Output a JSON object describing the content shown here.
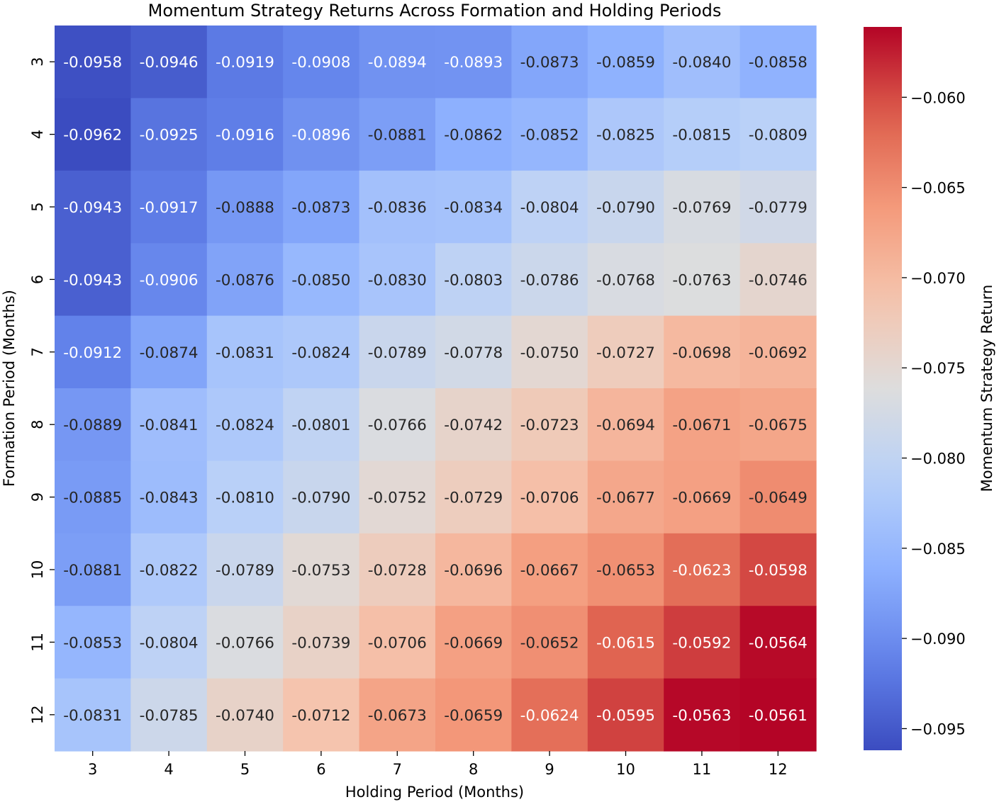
{
  "chart_data": {
    "type": "heatmap",
    "title": "Momentum Strategy Returns Across Formation and Holding Periods",
    "xlabel": "Holding Period (Months)",
    "ylabel": "Formation Period (Months)",
    "x_categories": [
      "3",
      "4",
      "5",
      "6",
      "7",
      "8",
      "9",
      "10",
      "11",
      "12"
    ],
    "y_categories": [
      "3",
      "4",
      "5",
      "6",
      "7",
      "8",
      "9",
      "10",
      "11",
      "12"
    ],
    "values": [
      [
        -0.0958,
        -0.0946,
        -0.0919,
        -0.0908,
        -0.0894,
        -0.0893,
        -0.0873,
        -0.0859,
        -0.084,
        -0.0858
      ],
      [
        -0.0962,
        -0.0925,
        -0.0916,
        -0.0896,
        -0.0881,
        -0.0862,
        -0.0852,
        -0.0825,
        -0.0815,
        -0.0809
      ],
      [
        -0.0943,
        -0.0917,
        -0.0888,
        -0.0873,
        -0.0836,
        -0.0834,
        -0.0804,
        -0.079,
        -0.0769,
        -0.0779
      ],
      [
        -0.0943,
        -0.0906,
        -0.0876,
        -0.085,
        -0.083,
        -0.0803,
        -0.0786,
        -0.0768,
        -0.0763,
        -0.0746
      ],
      [
        -0.0912,
        -0.0874,
        -0.0831,
        -0.0824,
        -0.0789,
        -0.0778,
        -0.075,
        -0.0727,
        -0.0698,
        -0.0692
      ],
      [
        -0.0889,
        -0.0841,
        -0.0824,
        -0.0801,
        -0.0766,
        -0.0742,
        -0.0723,
        -0.0694,
        -0.0671,
        -0.0675
      ],
      [
        -0.0885,
        -0.0843,
        -0.081,
        -0.079,
        -0.0752,
        -0.0729,
        -0.0706,
        -0.0677,
        -0.0669,
        -0.0649
      ],
      [
        -0.0881,
        -0.0822,
        -0.0789,
        -0.0753,
        -0.0728,
        -0.0696,
        -0.0667,
        -0.0653,
        -0.0623,
        -0.0598
      ],
      [
        -0.0853,
        -0.0804,
        -0.0766,
        -0.0739,
        -0.0706,
        -0.0669,
        -0.0652,
        -0.0615,
        -0.0592,
        -0.0564
      ],
      [
        -0.0831,
        -0.0785,
        -0.074,
        -0.0712,
        -0.0673,
        -0.0659,
        -0.0624,
        -0.0595,
        -0.0563,
        -0.0561
      ]
    ],
    "value_format": "4 decimals",
    "colormap": "coolwarm",
    "colorbar": {
      "label": "Momentum Strategy Return",
      "min": -0.0962,
      "max": -0.0561,
      "ticks": [
        -0.095,
        -0.09,
        -0.085,
        -0.08,
        -0.075,
        -0.07,
        -0.065,
        -0.06
      ],
      "tick_labels": [
        "−0.095",
        "−0.090",
        "−0.085",
        "−0.080",
        "−0.075",
        "−0.070",
        "−0.065",
        "−0.060"
      ]
    },
    "grid": false,
    "legend": "colorbar on right"
  }
}
